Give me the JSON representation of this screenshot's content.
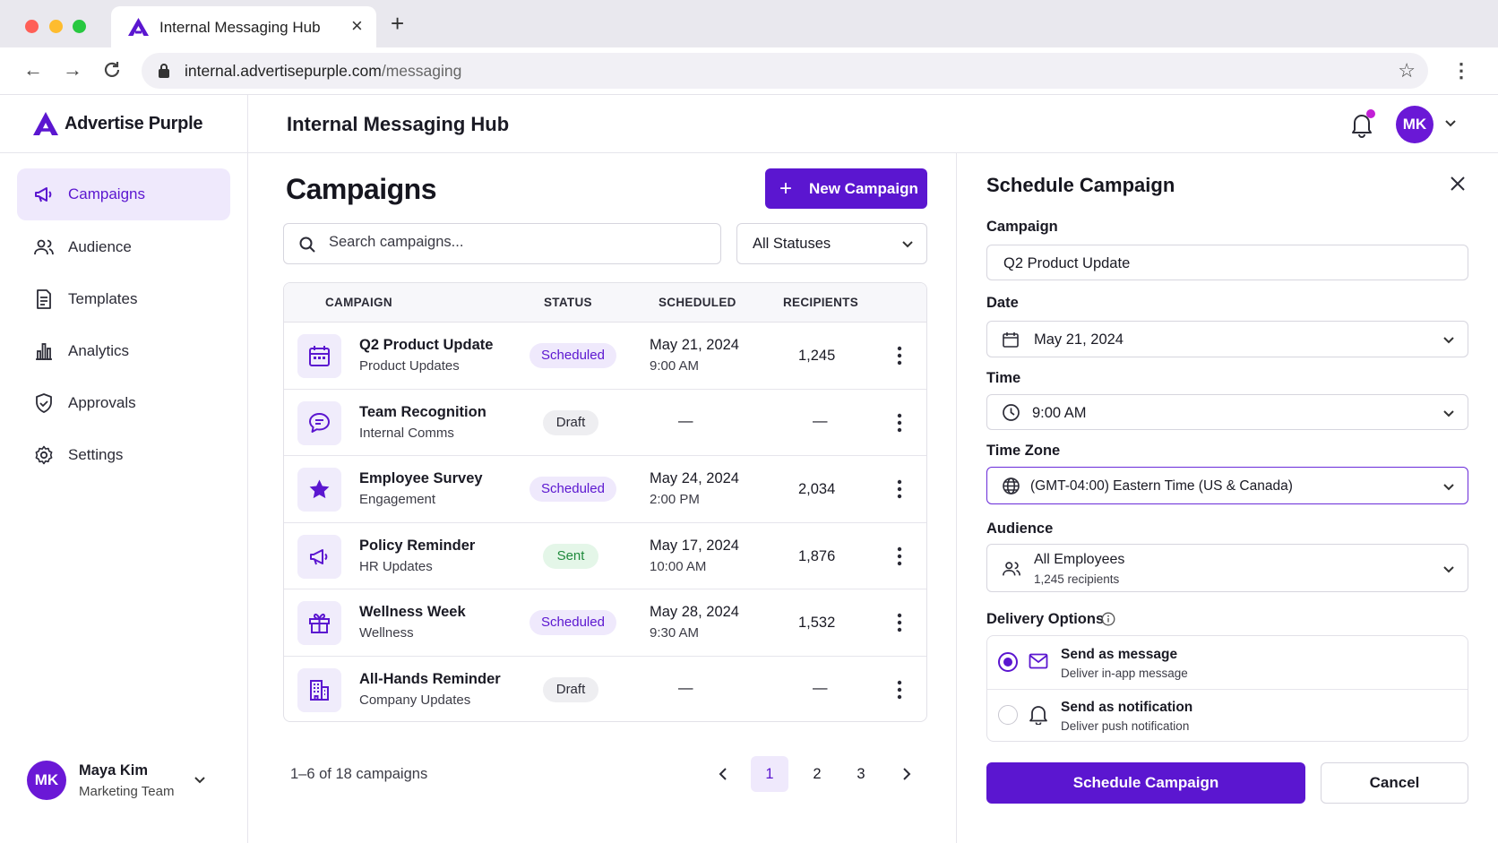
{
  "browser": {
    "tab_title": "Internal Messaging Hub",
    "url_host": "internal.advertisepurple.com",
    "url_path": "/messaging"
  },
  "header": {
    "brand": "Advertise Purple",
    "title": "Internal Messaging Hub",
    "avatar_initials": "MK"
  },
  "sidebar": {
    "items": [
      {
        "label": "Campaigns",
        "icon": "megaphone-icon",
        "active": true
      },
      {
        "label": "Audience",
        "icon": "users-icon"
      },
      {
        "label": "Templates",
        "icon": "document-icon"
      },
      {
        "label": "Analytics",
        "icon": "bar-chart-icon"
      },
      {
        "label": "Approvals",
        "icon": "shield-check-icon"
      },
      {
        "label": "Settings",
        "icon": "gear-icon"
      }
    ],
    "user": {
      "initials": "MK",
      "name": "Maya Kim",
      "team": "Marketing Team"
    }
  },
  "main": {
    "title": "Campaigns",
    "new_button": "New Campaign",
    "search_placeholder": "Search campaigns...",
    "status_filter": "All Statuses",
    "columns": [
      "CAMPAIGN",
      "STATUS",
      "SCHEDULED",
      "RECIPIENTS"
    ],
    "rows": [
      {
        "name": "Q2 Product Update",
        "category": "Product Updates",
        "status": "Scheduled",
        "date": "May 21, 2024",
        "time": "9:00 AM",
        "recipients": "1,245",
        "icon": "calendar-icon"
      },
      {
        "name": "Team Recognition",
        "category": "Internal Comms",
        "status": "Draft",
        "date": "—",
        "time": "",
        "recipients": "—",
        "icon": "chat-bubble-icon"
      },
      {
        "name": "Employee Survey",
        "category": "Engagement",
        "status": "Scheduled",
        "date": "May 24, 2024",
        "time": "2:00 PM",
        "recipients": "2,034",
        "icon": "star-icon"
      },
      {
        "name": "Policy Reminder",
        "category": "HR Updates",
        "status": "Sent",
        "date": "May 17, 2024",
        "time": "10:00 AM",
        "recipients": "1,876",
        "icon": "megaphone-icon"
      },
      {
        "name": "Wellness Week",
        "category": "Wellness",
        "status": "Scheduled",
        "date": "May 28, 2024",
        "time": "9:30 AM",
        "recipients": "1,532",
        "icon": "gift-icon"
      },
      {
        "name": "All-Hands Reminder",
        "category": "Company Updates",
        "status": "Draft",
        "date": "—",
        "time": "",
        "recipients": "—",
        "icon": "building-icon"
      }
    ],
    "pagination": {
      "summary": "1–6 of 18 campaigns",
      "pages": [
        "1",
        "2",
        "3"
      ],
      "current": "1"
    }
  },
  "panel": {
    "title": "Schedule Campaign",
    "campaign_label": "Campaign",
    "campaign_value": "Q2 Product Update",
    "date_label": "Date",
    "date_value": "May 21, 2024",
    "time_label": "Time",
    "time_value": "9:00 AM",
    "timezone_label": "Time Zone",
    "timezone_value": "(GMT-04:00) Eastern Time (US & Canada)",
    "audience_label": "Audience",
    "audience_value": "All Employees",
    "audience_sub": "1,245 recipients",
    "delivery_label": "Delivery Options",
    "options": [
      {
        "title": "Send as message",
        "sub": "Deliver in-app message",
        "selected": true
      },
      {
        "title": "Send as notification",
        "sub": "Deliver push notification",
        "selected": false
      }
    ],
    "submit": "Schedule Campaign",
    "cancel": "Cancel"
  },
  "colors": {
    "accent": "#5b16d0",
    "accent_light": "#efe9fc",
    "notification_dot": "#c21fd6",
    "sent_green": "#1f8a3c"
  }
}
